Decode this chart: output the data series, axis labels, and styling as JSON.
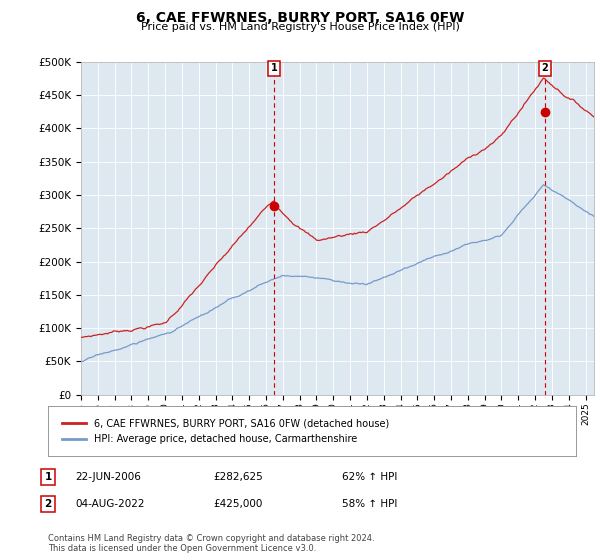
{
  "title": "6, CAE FFWRNES, BURRY PORT, SA16 0FW",
  "subtitle": "Price paid vs. HM Land Registry's House Price Index (HPI)",
  "ylabel_ticks": [
    "£0",
    "£50K",
    "£100K",
    "£150K",
    "£200K",
    "£250K",
    "£300K",
    "£350K",
    "£400K",
    "£450K",
    "£500K"
  ],
  "ytick_values": [
    0,
    50000,
    100000,
    150000,
    200000,
    250000,
    300000,
    350000,
    400000,
    450000,
    500000
  ],
  "ylim": [
    0,
    500000
  ],
  "xlim_start": 1995.0,
  "xlim_end": 2025.5,
  "marker1_date": 2006.47,
  "marker1_value": 282625,
  "marker2_date": 2022.58,
  "marker2_value": 425000,
  "marker1_label": "1",
  "marker2_label": "2",
  "red_line_color": "#cc2222",
  "blue_line_color": "#7799cc",
  "plot_bg_color": "#dde8f0",
  "marker_color": "#cc0000",
  "vline_color": "#cc0000",
  "grid_color": "#ffffff",
  "bg_color": "#ffffff",
  "legend_label_red": "6, CAE FFWRNES, BURRY PORT, SA16 0FW (detached house)",
  "legend_label_blue": "HPI: Average price, detached house, Carmarthenshire",
  "table_row1": [
    "1",
    "22-JUN-2006",
    "£282,625",
    "62% ↑ HPI"
  ],
  "table_row2": [
    "2",
    "04-AUG-2022",
    "£425,000",
    "58% ↑ HPI"
  ],
  "footer": "Contains HM Land Registry data © Crown copyright and database right 2024.\nThis data is licensed under the Open Government Licence v3.0.",
  "xtick_years": [
    1995,
    1996,
    1997,
    1998,
    1999,
    2000,
    2001,
    2002,
    2003,
    2004,
    2005,
    2006,
    2007,
    2008,
    2009,
    2010,
    2011,
    2012,
    2013,
    2014,
    2015,
    2016,
    2017,
    2018,
    2019,
    2020,
    2021,
    2022,
    2023,
    2024,
    2025
  ]
}
